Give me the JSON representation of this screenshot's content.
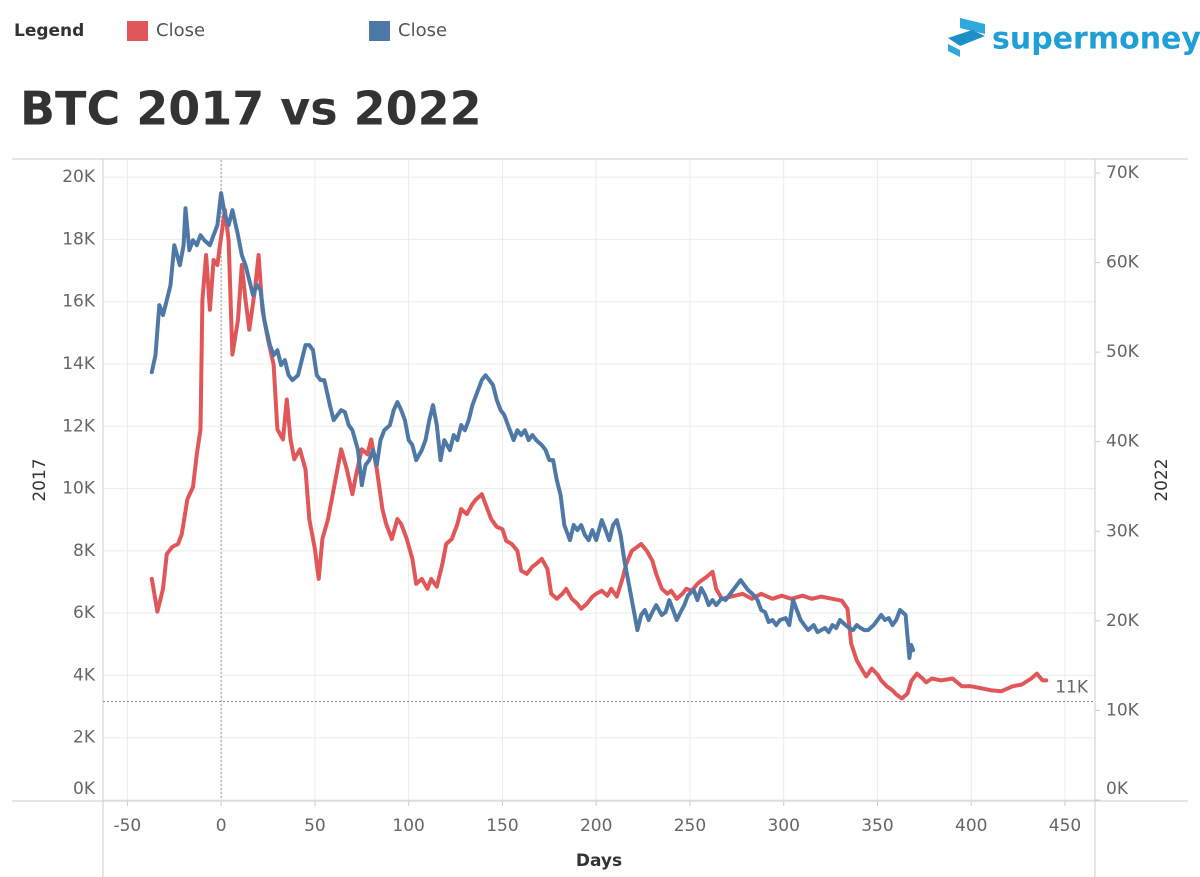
{
  "brand": "supermoney",
  "chart_data": {
    "type": "line",
    "title": "BTC 2017 vs 2022",
    "legend": {
      "title": "Legend"
    },
    "xlabel": "Days",
    "ylabel": "2017",
    "y2label": "2022",
    "xlim": [
      -63,
      466
    ],
    "ylim": [
      0,
      20550
    ],
    "y2lim": [
      0,
      71450
    ],
    "xticks": [
      -50,
      0,
      50,
      100,
      150,
      200,
      250,
      300,
      350,
      400,
      450
    ],
    "yticks": [
      {
        "value": 0,
        "label": "0K"
      },
      {
        "value": 2000,
        "label": "2K"
      },
      {
        "value": 4000,
        "label": "4K"
      },
      {
        "value": 6000,
        "label": "6K"
      },
      {
        "value": 8000,
        "label": "8K"
      },
      {
        "value": 10000,
        "label": "10K"
      },
      {
        "value": 12000,
        "label": "12K"
      },
      {
        "value": 14000,
        "label": "14K"
      },
      {
        "value": 16000,
        "label": "16K"
      },
      {
        "value": 18000,
        "label": "18K"
      },
      {
        "value": 20000,
        "label": "20K"
      }
    ],
    "y2ticks": [
      {
        "value": 0,
        "label": "0K"
      },
      {
        "value": 10000,
        "label": "10K"
      },
      {
        "value": 20000,
        "label": "20K"
      },
      {
        "value": 30000,
        "label": "30K"
      },
      {
        "value": 40000,
        "label": "40K"
      },
      {
        "value": 50000,
        "label": "50K"
      },
      {
        "value": 60000,
        "label": "60K"
      },
      {
        "value": 70000,
        "label": "70K"
      }
    ],
    "grid": true,
    "vline": 0,
    "reference_line": {
      "value": 11000,
      "label": "11K",
      "axis": "y2"
    },
    "series": [
      {
        "name": "Close",
        "color": "#e15759",
        "axis": "y",
        "x": [
          -37,
          -34,
          -31,
          -29,
          -26,
          -23,
          -21,
          -18,
          -15,
          -13,
          -11,
          -10,
          -8,
          -6,
          -4,
          -2,
          -1,
          2,
          4,
          6,
          9,
          11,
          13,
          15,
          18,
          20,
          22,
          25,
          28,
          30,
          33,
          35,
          37,
          39,
          42,
          45,
          47,
          50,
          52,
          54,
          57,
          59,
          62,
          64,
          67,
          70,
          72,
          75,
          78,
          80,
          83,
          86,
          88,
          91,
          94,
          96,
          99,
          102,
          104,
          107,
          110,
          112,
          115,
          118,
          120,
          123,
          126,
          128,
          131,
          134,
          136,
          139,
          142,
          144,
          147,
          150,
          152,
          155,
          158,
          160,
          163,
          166,
          168,
          171,
          174,
          176,
          179,
          182,
          184,
          187,
          190,
          192,
          195,
          198,
          200,
          203,
          206,
          208,
          211,
          214,
          216,
          219,
          222,
          224,
          227,
          230,
          232,
          235,
          238,
          240,
          243,
          246,
          248,
          251,
          254,
          256,
          259,
          262,
          264,
          267,
          272,
          278,
          283,
          288,
          294,
          299,
          304,
          310,
          315,
          320,
          326,
          331,
          334,
          336,
          339,
          342,
          344,
          347,
          350,
          352,
          355,
          358,
          360,
          363,
          366,
          368,
          371,
          374,
          376,
          379,
          384,
          390,
          395,
          400,
          406,
          411,
          416,
          422,
          427,
          432,
          435,
          438,
          440
        ],
        "values": [
          7100,
          6050,
          6780,
          7900,
          8130,
          8220,
          8540,
          9660,
          10050,
          11100,
          11900,
          16060,
          17500,
          15740,
          17340,
          17180,
          17660,
          18940,
          17980,
          14300,
          15420,
          17180,
          16060,
          15100,
          16380,
          17500,
          15740,
          14780,
          13980,
          11900,
          11580,
          12860,
          11580,
          10940,
          11260,
          10620,
          9020,
          8060,
          7100,
          8380,
          9020,
          9660,
          10620,
          11260,
          10620,
          9820,
          10460,
          11260,
          11100,
          11580,
          10620,
          9340,
          8860,
          8380,
          9020,
          8860,
          8380,
          7740,
          6940,
          7100,
          6780,
          7100,
          6850,
          7580,
          8220,
          8380,
          8860,
          9340,
          9180,
          9500,
          9660,
          9820,
          9340,
          9020,
          8770,
          8700,
          8320,
          8220,
          8000,
          7360,
          7260,
          7490,
          7580,
          7740,
          7420,
          6620,
          6460,
          6620,
          6780,
          6460,
          6300,
          6140,
          6300,
          6530,
          6620,
          6720,
          6560,
          6780,
          6530,
          7100,
          7580,
          8000,
          8130,
          8220,
          8000,
          7680,
          7260,
          6780,
          6620,
          6720,
          6460,
          6620,
          6780,
          6720,
          6940,
          7040,
          7170,
          7330,
          6780,
          6460,
          6530,
          6620,
          6460,
          6620,
          6460,
          6560,
          6460,
          6560,
          6460,
          6530,
          6460,
          6400,
          6140,
          5020,
          4480,
          4160,
          3970,
          4220,
          4030,
          3840,
          3650,
          3520,
          3390,
          3260,
          3420,
          3810,
          4060,
          3900,
          3780,
          3900,
          3840,
          3900,
          3650,
          3650,
          3580,
          3520,
          3490,
          3650,
          3710,
          3900,
          4060,
          3840,
          3840
        ]
      },
      {
        "name": "Close",
        "color": "#4e79a7",
        "axis": "y2",
        "x": [
          -37,
          -35,
          -33,
          -31,
          -29,
          -27,
          -25,
          -22,
          -20,
          -19,
          -17,
          -15,
          -13,
          -11,
          -9,
          -6,
          -4,
          -2,
          0,
          2,
          4,
          6,
          9,
          11,
          13,
          15,
          17,
          19,
          21,
          23,
          26,
          28,
          30,
          32,
          34,
          36,
          38,
          41,
          43,
          45,
          47,
          49,
          51,
          53,
          55,
          58,
          60,
          62,
          64,
          66,
          68,
          70,
          73,
          75,
          77,
          79,
          81,
          83,
          85,
          87,
          90,
          92,
          94,
          96,
          98,
          100,
          102,
          104,
          107,
          109,
          111,
          113,
          115,
          117,
          119,
          122,
          124,
          126,
          128,
          130,
          132,
          134,
          136,
          139,
          141,
          143,
          145,
          147,
          149,
          151,
          154,
          156,
          158,
          160,
          162,
          164,
          166,
          168,
          171,
          173,
          175,
          177,
          179,
          181,
          183,
          186,
          188,
          190,
          192,
          194,
          196,
          198,
          200,
          203,
          205,
          207,
          209,
          211,
          213,
          215,
          217,
          220,
          222,
          224,
          226,
          228,
          230,
          232,
          235,
          237,
          239,
          241,
          243,
          245,
          247,
          249,
          252,
          254,
          256,
          258,
          260,
          262,
          264,
          267,
          269,
          271,
          273,
          275,
          277,
          279,
          281,
          284,
          286,
          288,
          290,
          292,
          294,
          296,
          298,
          301,
          303,
          305,
          307,
          309,
          311,
          313,
          316,
          318,
          320,
          322,
          324,
          326,
          328,
          330,
          333,
          335,
          337,
          339,
          341,
          343,
          345,
          348,
          350,
          352,
          354,
          356,
          358,
          360,
          362,
          365,
          367,
          368,
          369
        ],
        "values": [
          47770,
          49670,
          55250,
          54130,
          55800,
          57480,
          61940,
          59710,
          61940,
          66070,
          61380,
          62500,
          61940,
          63060,
          62500,
          61940,
          63060,
          64170,
          67750,
          65290,
          64170,
          65850,
          63060,
          60830,
          59710,
          58040,
          56360,
          57480,
          56920,
          53570,
          50780,
          49670,
          50220,
          48550,
          49110,
          47430,
          46880,
          47430,
          49110,
          50780,
          50780,
          50220,
          47430,
          46880,
          46880,
          44080,
          42410,
          42970,
          43530,
          43300,
          41850,
          41290,
          39060,
          35160,
          37390,
          37950,
          39060,
          37390,
          40180,
          41290,
          41850,
          43530,
          44420,
          43530,
          42410,
          40180,
          39620,
          37950,
          39060,
          40180,
          42410,
          44080,
          41850,
          37950,
          40180,
          39060,
          40740,
          40180,
          41850,
          41290,
          42410,
          44080,
          45200,
          46880,
          47430,
          46880,
          46320,
          44640,
          43530,
          42970,
          41290,
          40180,
          41290,
          40740,
          41290,
          40180,
          40740,
          40180,
          39620,
          39060,
          37950,
          37950,
          35710,
          34040,
          30690,
          29020,
          30690,
          30130,
          30690,
          29580,
          29020,
          30130,
          29020,
          31250,
          30130,
          29020,
          30690,
          31250,
          29580,
          26790,
          24550,
          21210,
          18970,
          20650,
          21210,
          20090,
          20980,
          21760,
          20650,
          20980,
          22320,
          21210,
          20090,
          20980,
          21760,
          22880,
          23440,
          22320,
          23660,
          22880,
          21760,
          22320,
          21760,
          22540,
          22320,
          22880,
          23440,
          23990,
          24550,
          23990,
          23440,
          22880,
          22320,
          21210,
          20980,
          19870,
          20090,
          19530,
          20090,
          20310,
          19530,
          22320,
          21210,
          20090,
          19530,
          18970,
          19530,
          18750,
          18970,
          19200,
          18750,
          19530,
          19200,
          20090,
          19530,
          19200,
          18970,
          19530,
          19200,
          18970,
          18970,
          19530,
          20090,
          20650,
          20090,
          20310,
          19530,
          20090,
          21210,
          20650,
          15850,
          17300,
          16740
        ]
      }
    ]
  }
}
